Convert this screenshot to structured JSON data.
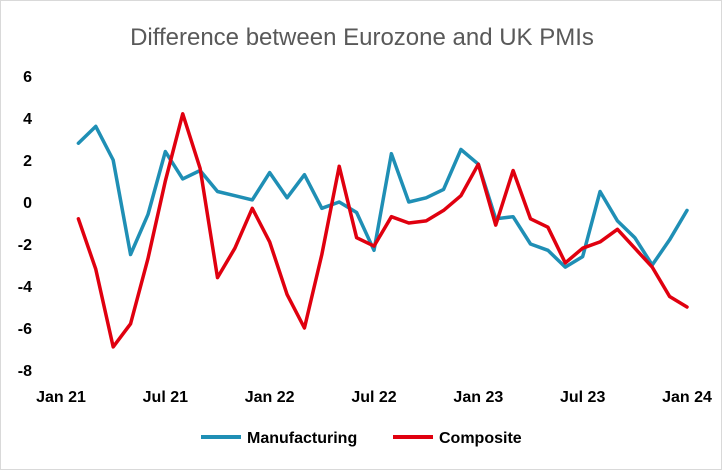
{
  "chart_data": {
    "type": "line",
    "title": "Difference between Eurozone and UK PMIs",
    "xlabel": "",
    "ylabel": "",
    "ylim": [
      -8,
      6
    ],
    "yticks": [
      6,
      4,
      2,
      0,
      -2,
      -4,
      -6,
      -8
    ],
    "x_tick_labels": [
      "Jan 21",
      "Jul 21",
      "Jan 22",
      "Jul 22",
      "Jan 23",
      "Jul 23",
      "Jan 24"
    ],
    "x_tick_months": [
      0,
      6,
      12,
      18,
      24,
      30,
      36
    ],
    "x_range_months": [
      0,
      36
    ],
    "grid": false,
    "legend_position": "bottom",
    "series": [
      {
        "name": "Manufacturing",
        "color": "#1f8fb5",
        "start_month": 1,
        "values": [
          2.8,
          3.6,
          2.0,
          -2.5,
          -0.6,
          2.4,
          1.1,
          1.5,
          0.5,
          0.3,
          0.1,
          1.4,
          0.2,
          1.3,
          -0.3,
          0.0,
          -0.5,
          -2.3,
          2.3,
          0.0,
          0.2,
          0.6,
          2.5,
          1.8,
          -0.8,
          -0.7,
          -2.0,
          -2.3,
          -3.1,
          -2.6,
          0.5,
          -0.9,
          -1.7,
          -3.0,
          -1.8,
          -0.4
        ]
      },
      {
        "name": "Composite",
        "color": "#e0000f",
        "start_month": 1,
        "values": [
          -0.8,
          -3.2,
          -6.9,
          -5.8,
          -2.7,
          1.0,
          4.2,
          1.6,
          -3.6,
          -2.2,
          -0.3,
          -1.9,
          -4.4,
          -6.0,
          -2.5,
          1.7,
          -1.7,
          -2.1,
          -0.7,
          -1.0,
          -0.9,
          -0.4,
          0.3,
          1.8,
          -1.1,
          1.5,
          -0.8,
          -1.2,
          -2.9,
          -2.2,
          -1.9,
          -1.3,
          -2.2,
          -3.1,
          -4.5,
          -5.0
        ]
      }
    ]
  }
}
